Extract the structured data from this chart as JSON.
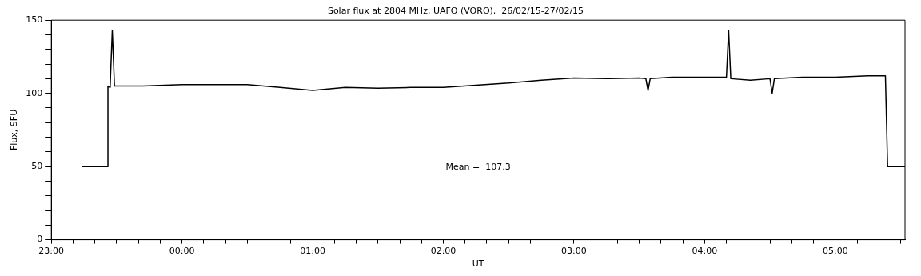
{
  "chart_data": {
    "type": "line",
    "title": "Solar flux at 2804 MHz, UAFO (VORO),  26/02/15-27/02/15",
    "xlabel": "UT",
    "ylabel": "Flux, SFU",
    "annotations": [
      "Mean =  107.3"
    ],
    "x": [
      "--02-26T23:14",
      "--02-26T23:26",
      "--02-26T23:26",
      "--02-26T23:27",
      "--02-26T23:28",
      "--02-26T23:29",
      "--02-26T23:42",
      "--02-27T00:00",
      "--02-27T00:18",
      "--02-27T00:30",
      "--02-27T00:45",
      "--02-27T01:00",
      "--02-27T01:15",
      "--02-27T01:30",
      "--02-27T01:45",
      "--02-27T02:00",
      "--02-27T02:15",
      "--02-27T02:30",
      "--02-27T02:45",
      "--02-27T03:00",
      "--02-27T03:15",
      "--02-27T03:30",
      "--02-27T03:33",
      "--02-27T03:34",
      "--02-27T03:35",
      "--02-27T03:45",
      "--02-27T04:00",
      "--02-27T04:10",
      "--02-27T04:11",
      "--02-27T04:12",
      "--02-27T04:21",
      "--02-27T04:30",
      "--02-27T04:31",
      "--02-27T04:32",
      "--02-27T04:45",
      "--02-27T05:00",
      "--02-27T05:15",
      "--02-27T05:23",
      "--02-27T05:24",
      "--02-27T05:32"
    ],
    "series": [
      {
        "color": "#000000",
        "values": [
          50,
          50,
          105,
          104,
          143,
          105,
          105,
          106,
          106,
          106,
          104,
          102,
          104,
          103.5,
          104,
          104,
          105.5,
          107,
          109,
          110.5,
          110,
          110.5,
          110,
          102,
          110,
          111,
          111,
          111,
          143,
          110,
          109,
          110,
          100,
          110,
          111,
          111,
          112,
          112,
          50,
          50
        ]
      }
    ],
    "xlim": [
      "--02-26T23:00",
      "--02-27T05:32"
    ],
    "xticks": [
      {
        "value": "--02-26T23:00",
        "label": "23:00"
      },
      {
        "value": "--02-26T23:10",
        "label": null
      },
      {
        "value": "--02-26T23:20",
        "label": null
      },
      {
        "value": "--02-26T23:30",
        "label": null
      },
      {
        "value": "--02-26T23:40",
        "label": null
      },
      {
        "value": "--02-26T23:50",
        "label": null
      },
      {
        "value": "--02-27T00:00",
        "label": "00:00"
      },
      {
        "value": "--02-27T00:10",
        "label": null
      },
      {
        "value": "--02-27T00:20",
        "label": null
      },
      {
        "value": "--02-27T00:30",
        "label": null
      },
      {
        "value": "--02-27T00:40",
        "label": null
      },
      {
        "value": "--02-27T00:50",
        "label": null
      },
      {
        "value": "--02-27T01:00",
        "label": "01:00"
      },
      {
        "value": "--02-27T01:10",
        "label": null
      },
      {
        "value": "--02-27T01:20",
        "label": null
      },
      {
        "value": "--02-27T01:30",
        "label": null
      },
      {
        "value": "--02-27T01:40",
        "label": null
      },
      {
        "value": "--02-27T01:50",
        "label": null
      },
      {
        "value": "--02-27T02:00",
        "label": "02:00"
      },
      {
        "value": "--02-27T02:10",
        "label": null
      },
      {
        "value": "--02-27T02:20",
        "label": null
      },
      {
        "value": "--02-27T02:30",
        "label": null
      },
      {
        "value": "--02-27T02:40",
        "label": null
      },
      {
        "value": "--02-27T02:50",
        "label": null
      },
      {
        "value": "--02-27T03:00",
        "label": "03:00"
      },
      {
        "value": "--02-27T03:10",
        "label": null
      },
      {
        "value": "--02-27T03:20",
        "label": null
      },
      {
        "value": "--02-27T03:30",
        "label": null
      },
      {
        "value": "--02-27T03:40",
        "label": null
      },
      {
        "value": "--02-27T03:50",
        "label": null
      },
      {
        "value": "--02-27T04:00",
        "label": "04:00"
      },
      {
        "value": "--02-27T04:10",
        "label": null
      },
      {
        "value": "--02-27T04:20",
        "label": null
      },
      {
        "value": "--02-27T04:30",
        "label": null
      },
      {
        "value": "--02-27T04:40",
        "label": null
      },
      {
        "value": "--02-27T04:50",
        "label": null
      },
      {
        "value": "--02-27T05:00",
        "label": "05:00"
      },
      {
        "value": "--02-27T05:10",
        "label": null
      },
      {
        "value": "--02-27T05:20",
        "label": null
      },
      {
        "value": "--02-27T05:30",
        "label": null
      }
    ],
    "ylim": [
      0,
      150
    ],
    "yticks": [
      0,
      {
        "value": 10,
        "label": null
      },
      {
        "value": 20,
        "label": null
      },
      {
        "value": 30,
        "label": null
      },
      {
        "value": 40,
        "label": null
      },
      50,
      {
        "value": 60,
        "label": null
      },
      {
        "value": 70,
        "label": null
      },
      {
        "value": 80,
        "label": null
      },
      {
        "value": 90,
        "label": null
      },
      100,
      {
        "value": 110,
        "label": null
      },
      {
        "value": 120,
        "label": null
      },
      {
        "value": 130,
        "label": null
      },
      {
        "value": 140,
        "label": null
      },
      150
    ],
    "grid": false,
    "legend": false
  }
}
